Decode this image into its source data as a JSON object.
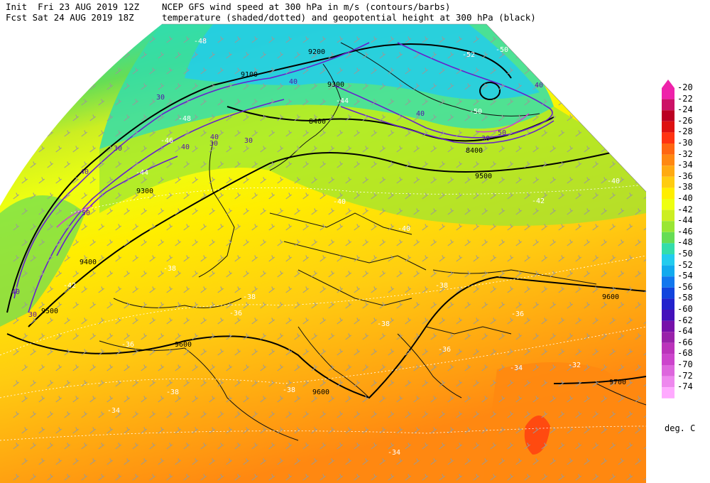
{
  "header": {
    "init_line": "Init  Fri 23 AUG 2019 12Z",
    "fcst_line": "Fcst Sat 24 AUG 2019 18Z",
    "title_line1": "NCEP GFS wind speed at 300 hPa in m/s (contours/barbs)",
    "title_line2": "temperature (shaded/dotted) and geopotential height at 300 hPa (black)"
  },
  "legend": {
    "units": "deg. C",
    "levels": [
      {
        "label": "-20",
        "color": "#ee22aa"
      },
      {
        "label": "-22",
        "color": "#cc1166"
      },
      {
        "label": "-24",
        "color": "#bb0022"
      },
      {
        "label": "-26",
        "color": "#dd1111"
      },
      {
        "label": "-28",
        "color": "#ff3311"
      },
      {
        "label": "-30",
        "color": "#ff6611"
      },
      {
        "label": "-32",
        "color": "#ff8811"
      },
      {
        "label": "-34",
        "color": "#ffaa11"
      },
      {
        "label": "-36",
        "color": "#ffcc11"
      },
      {
        "label": "-38",
        "color": "#ffee00"
      },
      {
        "label": "-40",
        "color": "#eeff11"
      },
      {
        "label": "-42",
        "color": "#ccee22"
      },
      {
        "label": "-44",
        "color": "#99e633"
      },
      {
        "label": "-46",
        "color": "#66dd55"
      },
      {
        "label": "-48",
        "color": "#33ddaa"
      },
      {
        "label": "-50",
        "color": "#22ccee"
      },
      {
        "label": "-52",
        "color": "#11aaee"
      },
      {
        "label": "-54",
        "color": "#1177ee"
      },
      {
        "label": "-56",
        "color": "#1144dd"
      },
      {
        "label": "-58",
        "color": "#2222cc"
      },
      {
        "label": "-60",
        "color": "#4411bb"
      },
      {
        "label": "-62",
        "color": "#7711aa"
      },
      {
        "label": "-64",
        "color": "#9922aa"
      },
      {
        "label": "-66",
        "color": "#bb33bb"
      },
      {
        "label": "-68",
        "color": "#cc44cc"
      },
      {
        "label": "-70",
        "color": "#dd66dd"
      },
      {
        "label": "-72",
        "color": "#ee88ee"
      },
      {
        "label": "-74",
        "color": "#ffaaff"
      }
    ]
  },
  "map": {
    "height_labels": [
      "9200",
      "9100",
      "9300",
      "9300",
      "8400",
      "8400",
      "9500",
      "9400",
      "9500",
      "9600",
      "9600",
      "9600",
      "9700"
    ],
    "wind_labels": [
      "30",
      "30",
      "30",
      "40",
      "40",
      "50",
      "40",
      "30",
      "30",
      "40",
      "40",
      "30",
      "40",
      "40",
      "50"
    ],
    "temp_labels": [
      "-48",
      "-52",
      "-50",
      "-46",
      "-44",
      "-44",
      "-40",
      "-42",
      "-40",
      "-42",
      "-40",
      "-38",
      "-38",
      "-36",
      "-38",
      "-36",
      "-38",
      "-38",
      "-36",
      "-34",
      "-32",
      "-38",
      "-36",
      "-34",
      "-34",
      "-50",
      "-48"
    ]
  }
}
